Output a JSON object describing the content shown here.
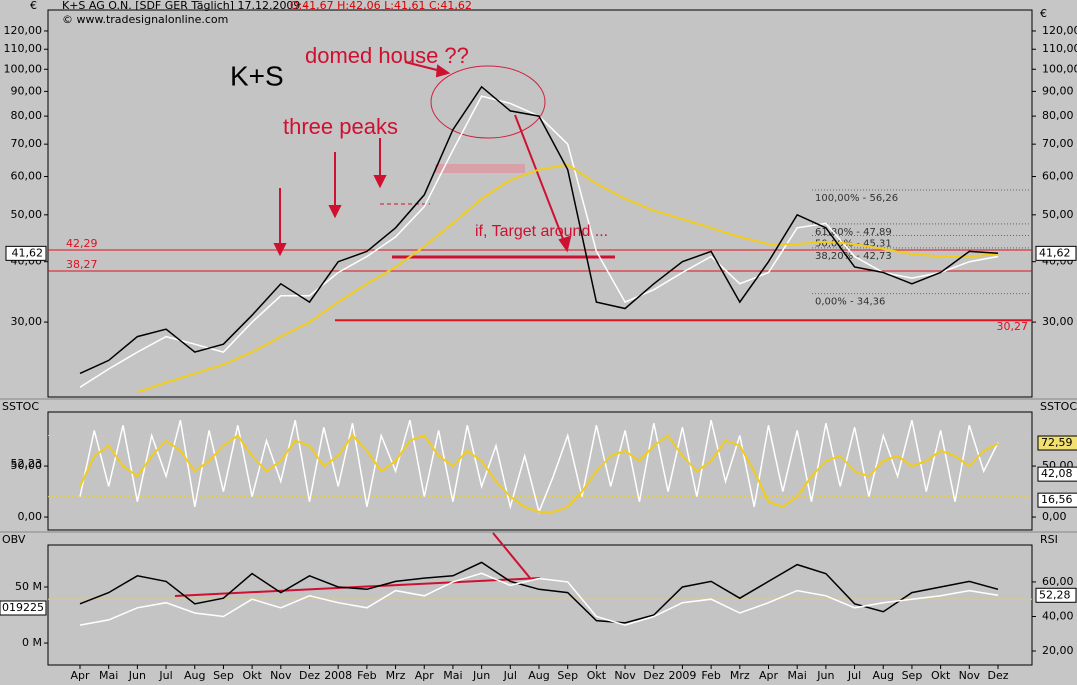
{
  "chart_data": [
    {
      "type": "line",
      "title": "K+S AG O.N. [SDF GER  Täglich] 17.12.2009 -",
      "quote": "O:41,67 H:42,06 L:41,61 C:41,62",
      "credit": "© www.tradesignalonline.com",
      "currency": "€",
      "categories": [
        "Apr",
        "Mai",
        "Jun",
        "Jul",
        "Aug",
        "Sep",
        "Okt",
        "Nov",
        "Dez",
        "2008",
        "Feb",
        "Mrz",
        "Apr",
        "Mai",
        "Jun",
        "Jul",
        "Aug",
        "Sep",
        "Okt",
        "Nov",
        "Dez",
        "2009",
        "Feb",
        "Mrz",
        "Apr",
        "Mai",
        "Jun",
        "Jul",
        "Aug",
        "Sep",
        "Okt",
        "Nov",
        "Dez"
      ],
      "log_scale": true,
      "ylim": [
        21,
        132.6
      ],
      "yticks": [
        {
          "value": 30,
          "label": "30,00"
        },
        {
          "value": 40,
          "label": "40,00"
        },
        {
          "value": 50,
          "label": "50,00"
        },
        {
          "value": 60,
          "label": "60,00"
        },
        {
          "value": 70,
          "label": "70,00"
        },
        {
          "value": 80,
          "label": "80,00"
        },
        {
          "value": 90,
          "label": "90,00"
        },
        {
          "value": 100,
          "label": "100,00"
        },
        {
          "value": 110,
          "label": "110,00"
        },
        {
          "value": 120,
          "label": "120,00"
        }
      ],
      "series": [
        {
          "color": "#ffffff",
          "values": [
            22,
            24,
            26,
            28,
            27,
            26,
            30,
            34,
            34,
            38,
            41,
            45,
            52,
            68,
            88,
            85,
            80,
            70,
            42,
            33,
            35,
            38,
            41,
            36,
            38,
            47,
            48,
            41,
            38,
            37,
            38,
            40,
            41
          ]
        },
        {
          "color": "#f2cc1a",
          "values": [
            null,
            null,
            21.5,
            22.5,
            23.5,
            24.5,
            26,
            28,
            30,
            33,
            36,
            39,
            43,
            48,
            54,
            59,
            62,
            63.5,
            58,
            54,
            51,
            49,
            47,
            45,
            43.5,
            43.5,
            44,
            43.5,
            42.5,
            41.5,
            41,
            41,
            41.5
          ]
        },
        {
          "color": "#000000",
          "values": [
            23.5,
            25,
            28,
            29,
            26,
            27,
            31,
            36,
            33,
            40,
            42,
            47,
            55,
            75,
            92,
            82,
            80,
            62,
            33,
            32,
            36,
            40,
            42,
            33,
            40,
            50,
            47,
            39,
            38,
            36,
            38,
            42,
            41.62
          ]
        }
      ],
      "last_value": {
        "value": 41.62,
        "label": "41,62"
      },
      "hlines": [
        {
          "value": 42.29,
          "label": "42,29"
        },
        {
          "value": 38.27,
          "label": "38,27"
        },
        {
          "value": 30.27,
          "label": "30,27"
        }
      ],
      "fibonacci": [
        {
          "value": 56.26,
          "label": "100,00% - 56,26"
        },
        {
          "value": 47.89,
          "label": "61,80% - 47,89"
        },
        {
          "value": 45.31,
          "label": "50,00% - 45,31"
        },
        {
          "value": 42.73,
          "label": "38,20% - 42,73"
        },
        {
          "value": 34.36,
          "label": "0,00% - 34,36"
        }
      ],
      "annotations": [
        "K+S",
        "domed house ??",
        "three peaks",
        "if, Target around ..."
      ]
    },
    {
      "type": "line",
      "title": "SSTOC",
      "ylim": [
        -12.7,
        103
      ],
      "yticks": [
        {
          "value": 0,
          "label": "0,00"
        },
        {
          "value": 50,
          "label": "50,00"
        }
      ],
      "levels": [
        20,
        80
      ],
      "series": [
        {
          "color": "#ffffff",
          "values": [
            20,
            85,
            30,
            90,
            15,
            80,
            40,
            95,
            10,
            85,
            25,
            90,
            20,
            75,
            35,
            95,
            15,
            88,
            30,
            92,
            10,
            80,
            45,
            95,
            20,
            85,
            15,
            90,
            30,
            70,
            10,
            60,
            5,
            40,
            80,
            20,
            90,
            30,
            85,
            15,
            92,
            25,
            88,
            20,
            95,
            35,
            80,
            10,
            90,
            25,
            85,
            15,
            92,
            30,
            88,
            20,
            80,
            40,
            95,
            25,
            85,
            15,
            90,
            45,
            73
          ]
        },
        {
          "color": "#f2cc1a",
          "values": [
            30,
            60,
            70,
            50,
            40,
            60,
            75,
            65,
            45,
            55,
            70,
            80,
            60,
            45,
            55,
            75,
            70,
            50,
            60,
            80,
            65,
            45,
            55,
            75,
            80,
            60,
            50,
            65,
            55,
            35,
            20,
            10,
            5,
            5,
            10,
            25,
            45,
            60,
            65,
            55,
            70,
            80,
            60,
            45,
            55,
            75,
            70,
            45,
            15,
            10,
            20,
            40,
            55,
            60,
            45,
            40,
            55,
            60,
            50,
            55,
            65,
            60,
            50,
            65,
            72
          ]
        }
      ],
      "left_value": {
        "value": 52.23,
        "label": "52,23"
      },
      "last_values": [
        {
          "value": 72.59,
          "label": "72,59"
        },
        {
          "value": 42.08,
          "label": "42,08"
        },
        {
          "value": 16.56,
          "label": "16,56"
        }
      ]
    },
    {
      "type": "line",
      "title": "OBV",
      "y2_title": "RSI",
      "ylim": [
        -19.6,
        87.5
      ],
      "yticks": [
        {
          "value": 0,
          "label": "0 M"
        },
        {
          "value": 50,
          "label": "50 M"
        }
      ],
      "y2lim": [
        11.9,
        81.4
      ],
      "y2ticks": [
        {
          "value": 20,
          "label": "20,00"
        },
        {
          "value": 40,
          "label": "40,00"
        },
        {
          "value": 60,
          "label": "60,00"
        }
      ],
      "levels": [
        50
      ],
      "series": [
        {
          "color": "#000000",
          "values": [
            35,
            45,
            60,
            55,
            35,
            40,
            62,
            45,
            60,
            50,
            48,
            55,
            58,
            60,
            72,
            55,
            48,
            45,
            20,
            18,
            25,
            50,
            55,
            40,
            55,
            70,
            62,
            35,
            28,
            45,
            50,
            55,
            48
          ]
        },
        {
          "color": "#ffffff",
          "axis": "y2",
          "values": [
            35,
            38,
            45,
            48,
            42,
            40,
            50,
            45,
            52,
            48,
            45,
            55,
            52,
            60,
            65,
            58,
            62,
            60,
            40,
            35,
            40,
            48,
            50,
            42,
            48,
            55,
            52,
            45,
            48,
            50,
            52,
            55,
            52.28
          ]
        }
      ],
      "left_value": "019225",
      "last_value": {
        "value": 52.28,
        "label": "52,28"
      }
    }
  ]
}
